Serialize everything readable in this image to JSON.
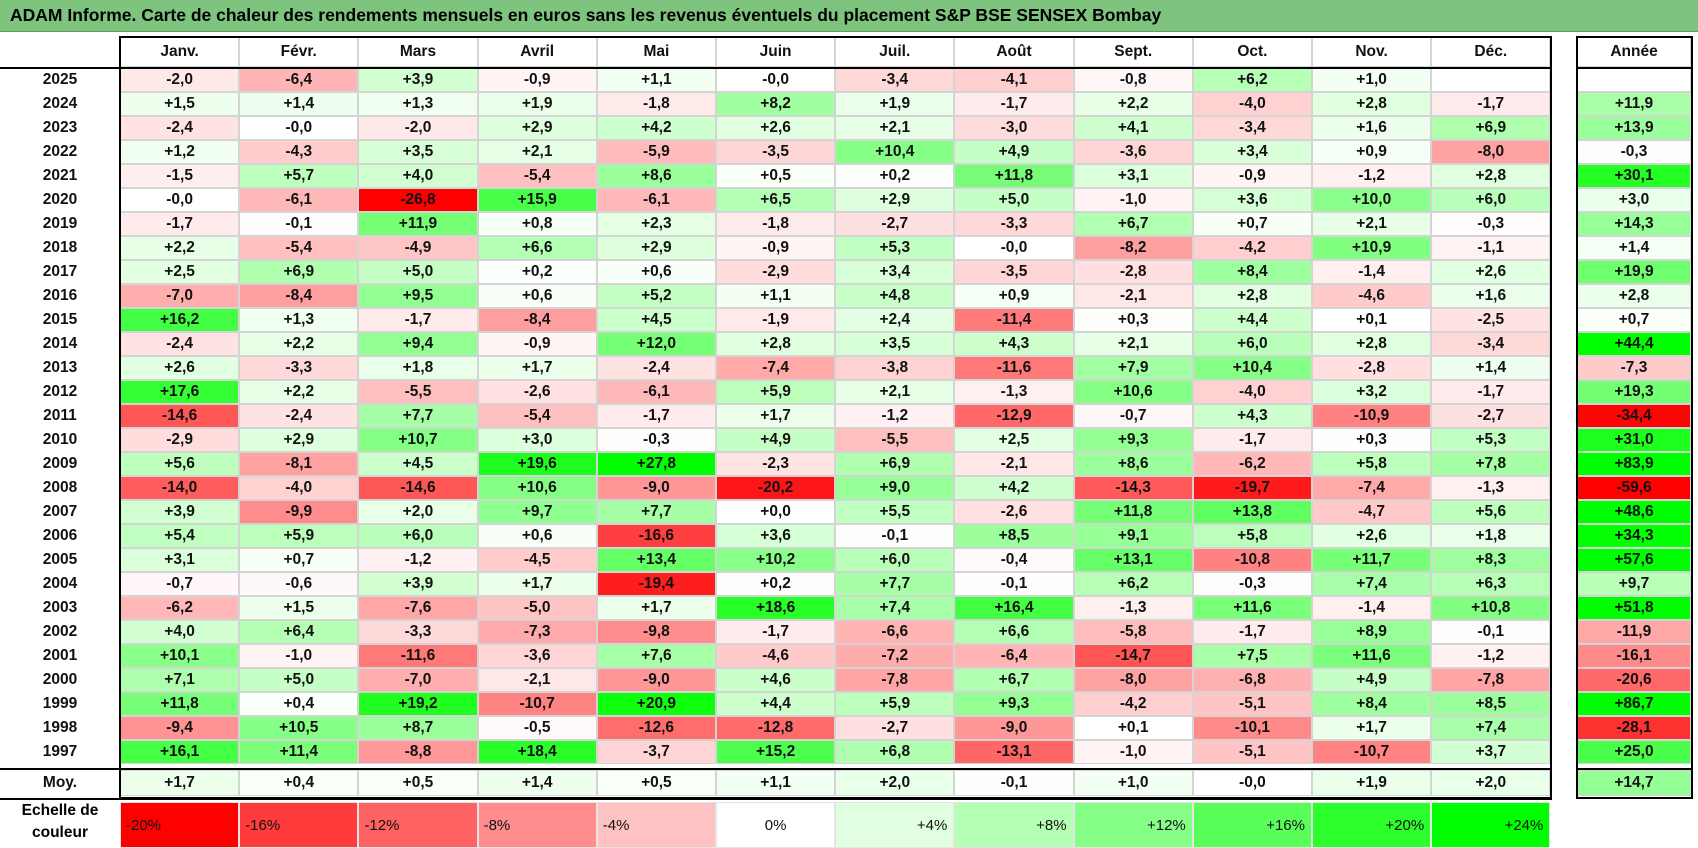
{
  "title": "ADAM Informe. Carte de chaleur des rendements mensuels en euros sans les revenus éventuels du placement S&P BSE SENSEX Bombay",
  "chart_data": {
    "type": "heatmap",
    "title": "ADAM Informe. Carte de chaleur des rendements mensuels en euros sans les revenus éventuels du placement S&P BSE SENSEX Bombay",
    "columns": [
      "Janv.",
      "Févr.",
      "Mars",
      "Avril",
      "Mai",
      "Juin",
      "Juil.",
      "Août",
      "Sept.",
      "Oct.",
      "Nov.",
      "Déc."
    ],
    "annual_header": "Année",
    "rows": [
      {
        "year": "2025",
        "values": [
          "-2,0",
          "-6,4",
          "+3,9",
          "-0,9",
          "+1,1",
          "-0,0",
          "-3,4",
          "-4,1",
          "-0,8",
          "+6,2",
          "+1,0",
          ""
        ],
        "annual": ""
      },
      {
        "year": "2024",
        "values": [
          "+1,5",
          "+1,4",
          "+1,3",
          "+1,9",
          "-1,8",
          "+8,2",
          "+1,9",
          "-1,7",
          "+2,2",
          "-4,0",
          "+2,8",
          "-1,7"
        ],
        "annual": "+11,9"
      },
      {
        "year": "2023",
        "values": [
          "-2,4",
          "-0,0",
          "-2,0",
          "+2,9",
          "+4,2",
          "+2,6",
          "+2,1",
          "-3,0",
          "+4,1",
          "-3,4",
          "+1,6",
          "+6,9"
        ],
        "annual": "+13,9"
      },
      {
        "year": "2022",
        "values": [
          "+1,2",
          "-4,3",
          "+3,5",
          "+2,1",
          "-5,9",
          "-3,5",
          "+10,4",
          "+4,9",
          "-3,6",
          "+3,4",
          "+0,9",
          "-8,0"
        ],
        "annual": "-0,3"
      },
      {
        "year": "2021",
        "values": [
          "-1,5",
          "+5,7",
          "+4,0",
          "-5,4",
          "+8,6",
          "+0,5",
          "+0,2",
          "+11,8",
          "+3,1",
          "-0,9",
          "-1,2",
          "+2,8"
        ],
        "annual": "+30,1"
      },
      {
        "year": "2020",
        "values": [
          "-0,0",
          "-6,1",
          "-26,8",
          "+15,9",
          "-6,1",
          "+6,5",
          "+2,9",
          "+5,0",
          "-1,0",
          "+3,6",
          "+10,0",
          "+6,0"
        ],
        "annual": "+3,0"
      },
      {
        "year": "2019",
        "values": [
          "-1,7",
          "-0,1",
          "+11,9",
          "+0,8",
          "+2,3",
          "-1,8",
          "-2,7",
          "-3,3",
          "+6,7",
          "+0,7",
          "+2,1",
          "-0,3"
        ],
        "annual": "+14,3"
      },
      {
        "year": "2018",
        "values": [
          "+2,2",
          "-5,4",
          "-4,9",
          "+6,6",
          "+2,9",
          "-0,9",
          "+5,3",
          "-0,0",
          "-8,2",
          "-4,2",
          "+10,9",
          "-1,1"
        ],
        "annual": "+1,4"
      },
      {
        "year": "2017",
        "values": [
          "+2,5",
          "+6,9",
          "+5,0",
          "+0,2",
          "+0,6",
          "-2,9",
          "+3,4",
          "-3,5",
          "-2,8",
          "+8,4",
          "-1,4",
          "+2,6"
        ],
        "annual": "+19,9"
      },
      {
        "year": "2016",
        "values": [
          "-7,0",
          "-8,4",
          "+9,5",
          "+0,6",
          "+5,2",
          "+1,1",
          "+4,8",
          "+0,9",
          "-2,1",
          "+2,8",
          "-4,6",
          "+1,6"
        ],
        "annual": "+2,8"
      },
      {
        "year": "2015",
        "values": [
          "+16,2",
          "+1,3",
          "-1,7",
          "-8,4",
          "+4,5",
          "-1,9",
          "+2,4",
          "-11,4",
          "+0,3",
          "+4,4",
          "+0,1",
          "-2,5"
        ],
        "annual": "+0,7"
      },
      {
        "year": "2014",
        "values": [
          "-2,4",
          "+2,2",
          "+9,4",
          "-0,9",
          "+12,0",
          "+2,8",
          "+3,5",
          "+4,3",
          "+2,1",
          "+6,0",
          "+2,8",
          "-3,4"
        ],
        "annual": "+44,4"
      },
      {
        "year": "2013",
        "values": [
          "+2,6",
          "-3,3",
          "+1,8",
          "+1,7",
          "-2,4",
          "-7,4",
          "-3,8",
          "-11,6",
          "+7,9",
          "+10,4",
          "-2,8",
          "+1,4"
        ],
        "annual": "-7,3"
      },
      {
        "year": "2012",
        "values": [
          "+17,6",
          "+2,2",
          "-5,5",
          "-2,6",
          "-6,1",
          "+5,9",
          "+2,1",
          "-1,3",
          "+10,6",
          "-4,0",
          "+3,2",
          "-1,7"
        ],
        "annual": "+19,3"
      },
      {
        "year": "2011",
        "values": [
          "-14,6",
          "-2,4",
          "+7,7",
          "-5,4",
          "-1,7",
          "+1,7",
          "-1,2",
          "-12,9",
          "-0,7",
          "+4,3",
          "-10,9",
          "-2,7"
        ],
        "annual": "-34,4"
      },
      {
        "year": "2010",
        "values": [
          "-2,9",
          "+2,9",
          "+10,7",
          "+3,0",
          "-0,3",
          "+4,9",
          "-5,5",
          "+2,5",
          "+9,3",
          "-1,7",
          "+0,3",
          "+5,3"
        ],
        "annual": "+31,0"
      },
      {
        "year": "2009",
        "values": [
          "+5,6",
          "-8,1",
          "+4,5",
          "+19,6",
          "+27,8",
          "-2,3",
          "+6,9",
          "-2,1",
          "+8,6",
          "-6,2",
          "+5,8",
          "+7,8"
        ],
        "annual": "+83,9"
      },
      {
        "year": "2008",
        "values": [
          "-14,0",
          "-4,0",
          "-14,6",
          "+10,6",
          "-9,0",
          "-20,2",
          "+9,0",
          "+4,2",
          "-14,3",
          "-19,7",
          "-7,4",
          "-1,3"
        ],
        "annual": "-59,6"
      },
      {
        "year": "2007",
        "values": [
          "+3,9",
          "-9,9",
          "+2,0",
          "+9,7",
          "+7,7",
          "+0,0",
          "+5,5",
          "-2,6",
          "+11,8",
          "+13,8",
          "-4,7",
          "+5,6"
        ],
        "annual": "+48,6"
      },
      {
        "year": "2006",
        "values": [
          "+5,4",
          "+5,9",
          "+6,0",
          "+0,6",
          "-16,6",
          "+3,6",
          "-0,1",
          "+8,5",
          "+9,1",
          "+5,8",
          "+2,6",
          "+1,8"
        ],
        "annual": "+34,3"
      },
      {
        "year": "2005",
        "values": [
          "+3,1",
          "+0,7",
          "-1,2",
          "-4,5",
          "+13,4",
          "+10,2",
          "+6,0",
          "-0,4",
          "+13,1",
          "-10,8",
          "+11,7",
          "+8,3"
        ],
        "annual": "+57,6"
      },
      {
        "year": "2004",
        "values": [
          "-0,7",
          "-0,6",
          "+3,9",
          "+1,7",
          "-19,4",
          "+0,2",
          "+7,7",
          "-0,1",
          "+6,2",
          "-0,3",
          "+7,4",
          "+6,3"
        ],
        "annual": "+9,7"
      },
      {
        "year": "2003",
        "values": [
          "-6,2",
          "+1,5",
          "-7,6",
          "-5,0",
          "+1,7",
          "+18,6",
          "+7,4",
          "+16,4",
          "-1,3",
          "+11,6",
          "-1,4",
          "+10,8"
        ],
        "annual": "+51,8"
      },
      {
        "year": "2002",
        "values": [
          "+4,0",
          "+6,4",
          "-3,3",
          "-7,3",
          "-9,8",
          "-1,7",
          "-6,6",
          "+6,6",
          "-5,8",
          "-1,7",
          "+8,9",
          "-0,1"
        ],
        "annual": "-11,9"
      },
      {
        "year": "2001",
        "values": [
          "+10,1",
          "-1,0",
          "-11,6",
          "-3,6",
          "+7,6",
          "-4,6",
          "-7,2",
          "-6,4",
          "-14,7",
          "+7,5",
          "+11,6",
          "-1,2"
        ],
        "annual": "-16,1"
      },
      {
        "year": "2000",
        "values": [
          "+7,1",
          "+5,0",
          "-7,0",
          "-2,1",
          "-9,0",
          "+4,6",
          "-7,8",
          "+6,7",
          "-8,0",
          "-6,8",
          "+4,9",
          "-7,8"
        ],
        "annual": "-20,6"
      },
      {
        "year": "1999",
        "values": [
          "+11,8",
          "+0,4",
          "+19,2",
          "-10,7",
          "+20,9",
          "+4,4",
          "+5,9",
          "+9,3",
          "-4,2",
          "-5,1",
          "+8,4",
          "+8,5"
        ],
        "annual": "+86,7"
      },
      {
        "year": "1998",
        "values": [
          "-9,4",
          "+10,5",
          "+8,7",
          "-0,5",
          "-12,6",
          "-12,8",
          "-2,7",
          "-9,0",
          "+0,1",
          "-10,1",
          "+1,7",
          "+7,4"
        ],
        "annual": "-28,1"
      },
      {
        "year": "1997",
        "values": [
          "+16,1",
          "+11,4",
          "-8,8",
          "+18,4",
          "-3,7",
          "+15,2",
          "+6,8",
          "-13,1",
          "-1,0",
          "-5,1",
          "-10,7",
          "+3,7"
        ],
        "annual": "+25,0"
      }
    ],
    "average": {
      "label": "Moy.",
      "values": [
        "+1,7",
        "+0,4",
        "+0,5",
        "+1,4",
        "+0,5",
        "+1,1",
        "+2,0",
        "-0,1",
        "+1,0",
        "-0,0",
        "+1,9",
        "+2,0"
      ],
      "annual": "+14,7"
    },
    "scale": {
      "label": "Echelle de couleur",
      "items": [
        "-20%",
        "-16%",
        "-12%",
        "-8%",
        "-4%",
        "0%",
        "+4%",
        "+8%",
        "+12%",
        "+16%",
        "+20%",
        "+24%"
      ],
      "colors": [
        "#ff0000",
        "#ff3b3b",
        "#ff6262",
        "#ff8d8d",
        "#ffc2c2",
        "#ffffff",
        "#e0ffe0",
        "#b3ffb3",
        "#86ff86",
        "#59ff59",
        "#2cff2c",
        "#00ff00"
      ]
    }
  }
}
